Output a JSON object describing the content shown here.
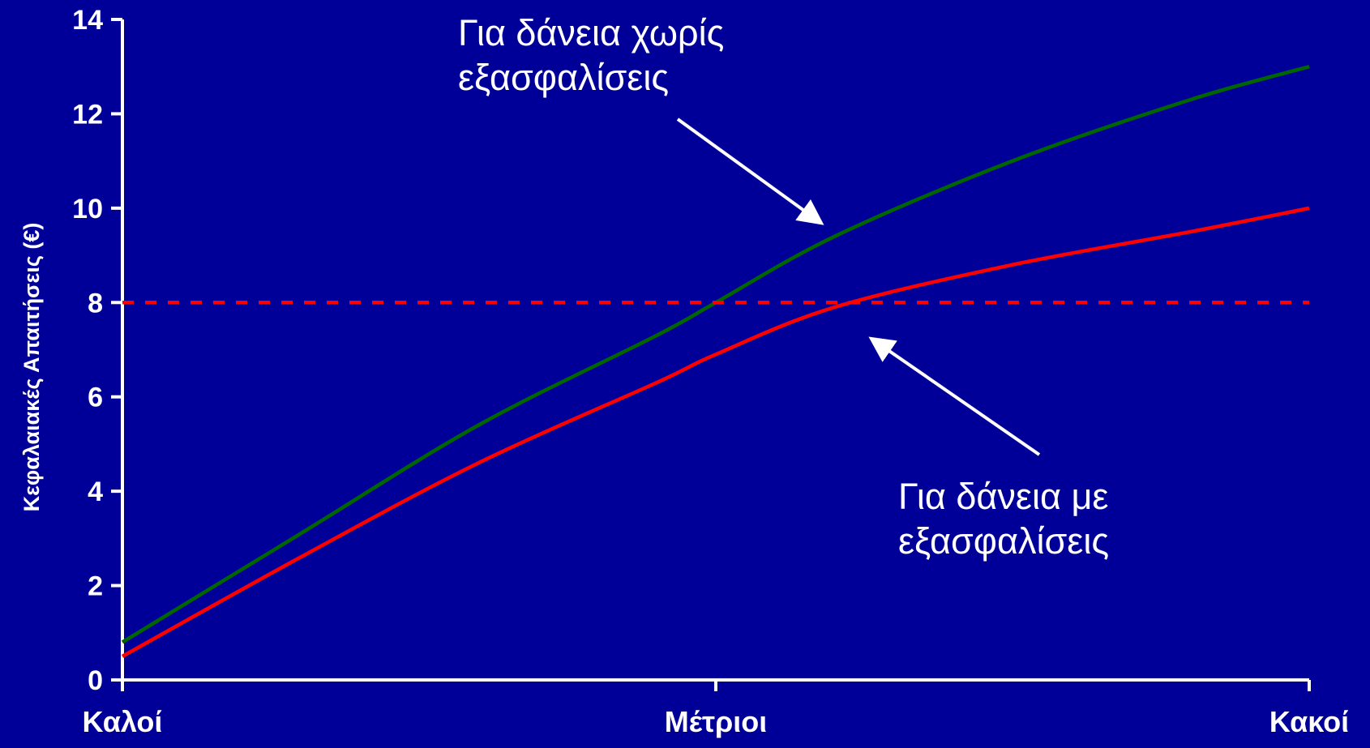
{
  "chart_data": {
    "type": "line",
    "ylabel": "Κεφαλαιακές Απαιτήσεις (€)",
    "xlabel": "",
    "ylim": [
      0,
      14
    ],
    "yticks": [
      0,
      2,
      4,
      6,
      8,
      10,
      12,
      14
    ],
    "categories": [
      "Καλοί",
      "Μέτριοι",
      "Κακοί"
    ],
    "x": [
      0,
      0.15,
      0.3,
      0.45,
      0.5,
      0.6,
      0.75,
      0.9,
      1.0
    ],
    "series": [
      {
        "color": "#006600",
        "style": "solid",
        "values": [
          0.8,
          3.1,
          5.4,
          7.3,
          8.0,
          9.4,
          11.0,
          12.3,
          13.0
        ]
      },
      {
        "color": "#ff0000",
        "style": "solid",
        "values": [
          0.5,
          2.6,
          4.6,
          6.3,
          6.9,
          7.9,
          8.8,
          9.5,
          10.0
        ]
      },
      {
        "color": "#ff0000",
        "style": "dashed",
        "values": [
          8,
          8,
          8,
          8,
          8,
          8,
          8,
          8,
          8
        ]
      }
    ],
    "annotations": [
      {
        "lines": [
          "Για δάνεια χωρίς",
          "εξασφαλίσεις"
        ]
      },
      {
        "lines": [
          "Για δάνεια με",
          "εξασφαλίσεις"
        ]
      }
    ],
    "grid": false,
    "legend": "none"
  }
}
